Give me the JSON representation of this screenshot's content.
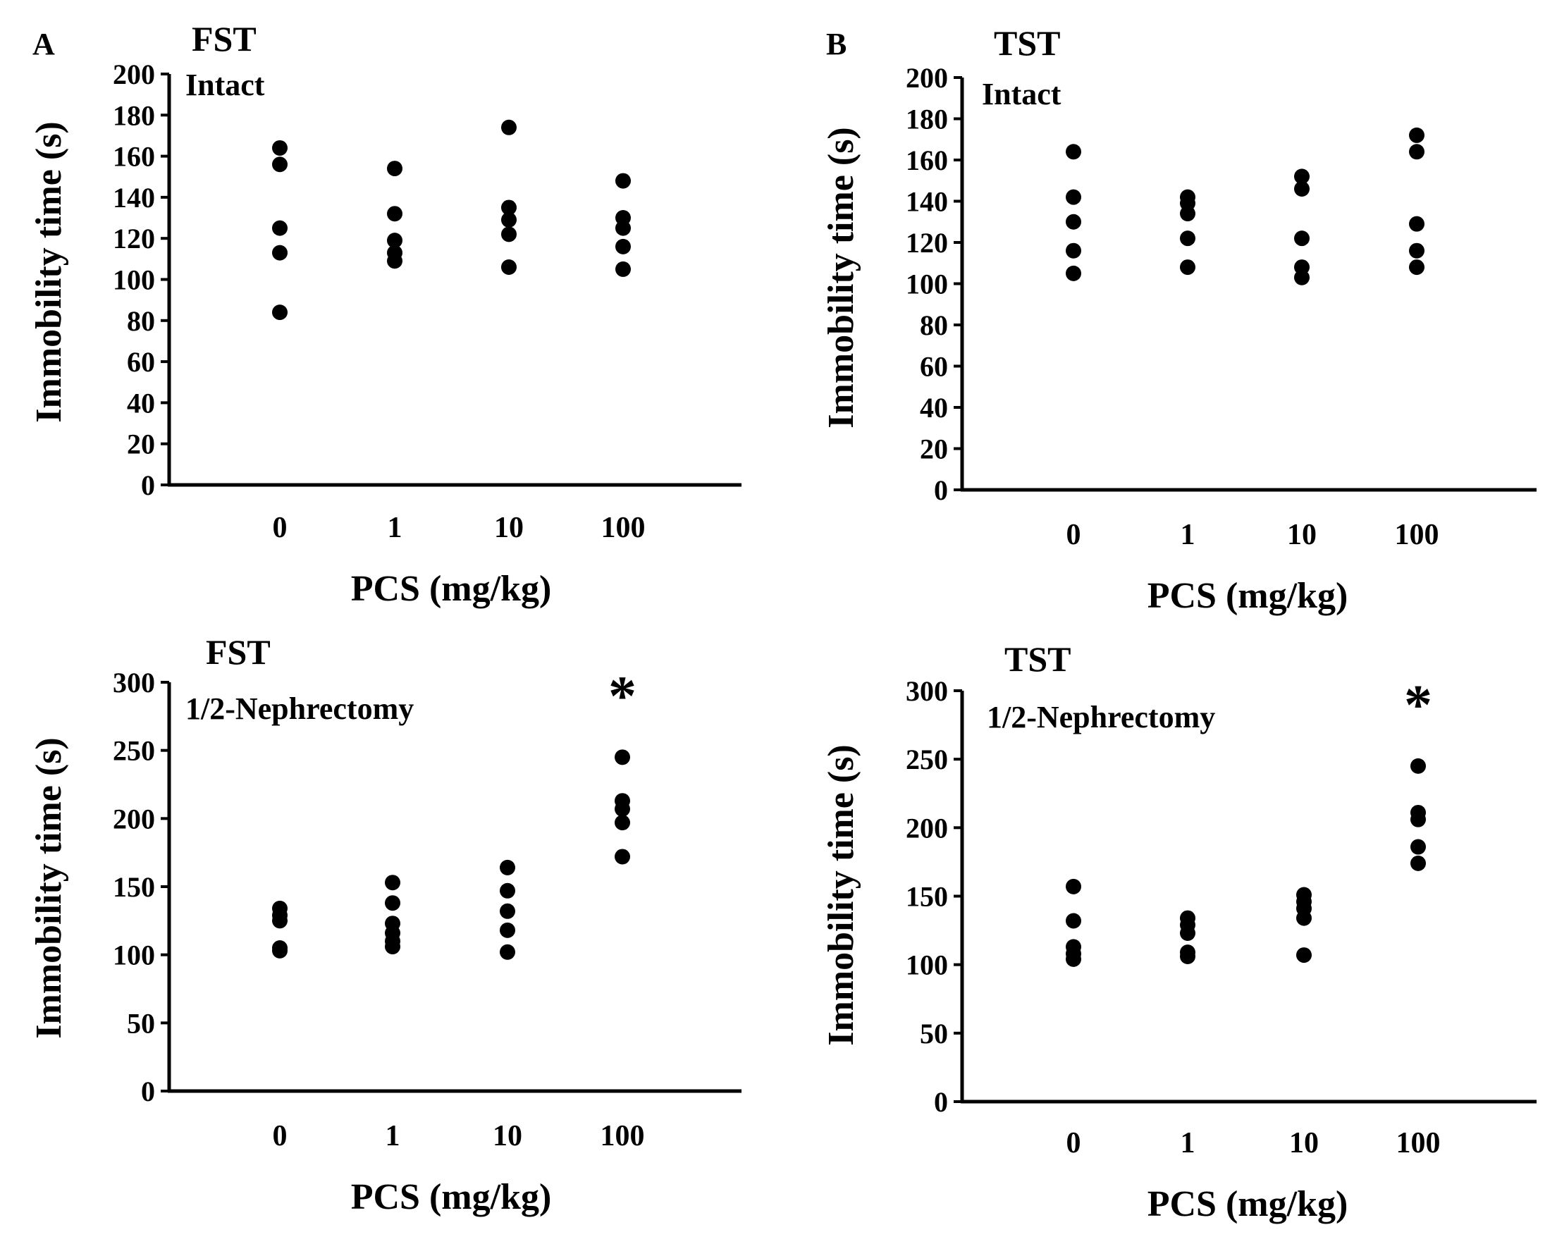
{
  "figure": {
    "panel_labels": [
      "A",
      "B"
    ]
  },
  "chart_data": [
    {
      "type": "scatter",
      "test": "FST",
      "condition": "Intact",
      "categories": [
        "0",
        "1",
        "10",
        "100"
      ],
      "xlabel": "PCS (mg/kg)",
      "ylabel": "Immobility time (s)",
      "ylim": [
        0,
        200
      ],
      "yticks": [
        0,
        20,
        40,
        60,
        80,
        100,
        120,
        140,
        160,
        180,
        200
      ],
      "groups": [
        [
          164,
          156,
          125,
          113,
          84
        ],
        [
          154,
          132,
          119,
          113,
          109
        ],
        [
          174,
          135,
          129,
          122,
          106
        ],
        [
          148,
          130,
          125,
          116,
          105
        ]
      ],
      "significance": []
    },
    {
      "type": "scatter",
      "test": "TST",
      "condition": "Intact",
      "categories": [
        "0",
        "1",
        "10",
        "100"
      ],
      "xlabel": "PCS (mg/kg)",
      "ylabel": "Immobility time (s)",
      "ylim": [
        0,
        200
      ],
      "yticks": [
        0,
        20,
        40,
        60,
        80,
        100,
        120,
        140,
        160,
        180,
        200
      ],
      "groups": [
        [
          164,
          142,
          130,
          116,
          105
        ],
        [
          142,
          139,
          134,
          122,
          108
        ],
        [
          152,
          146,
          122,
          108,
          103
        ],
        [
          172,
          164,
          129,
          116,
          108
        ]
      ],
      "significance": []
    },
    {
      "type": "scatter",
      "test": "FST",
      "condition": "1/2-Nephrectomy",
      "categories": [
        "0",
        "1",
        "10",
        "100"
      ],
      "xlabel": "PCS (mg/kg)",
      "ylabel": "Immobility time (s)",
      "ylim": [
        0,
        300
      ],
      "yticks": [
        0,
        50,
        100,
        150,
        200,
        250,
        300
      ],
      "groups": [
        [
          134,
          129,
          125,
          105,
          103
        ],
        [
          153,
          138,
          123,
          116,
          110,
          106
        ],
        [
          164,
          147,
          132,
          118,
          102
        ],
        [
          245,
          213,
          207,
          197,
          172
        ]
      ],
      "significance": [
        {
          "category": "100",
          "mark": "*"
        }
      ]
    },
    {
      "type": "scatter",
      "test": "TST",
      "condition": "1/2-Nephrectomy",
      "categories": [
        "0",
        "1",
        "10",
        "100"
      ],
      "xlabel": "PCS (mg/kg)",
      "ylabel": "Immobility time (s)",
      "ylim": [
        0,
        300
      ],
      "yticks": [
        0,
        50,
        100,
        150,
        200,
        250,
        300
      ],
      "groups": [
        [
          157,
          132,
          113,
          108,
          104
        ],
        [
          134,
          129,
          123,
          109,
          106
        ],
        [
          151,
          146,
          141,
          134,
          107
        ],
        [
          245,
          211,
          206,
          186,
          174
        ]
      ],
      "significance": [
        {
          "category": "100",
          "mark": "*"
        }
      ]
    }
  ]
}
